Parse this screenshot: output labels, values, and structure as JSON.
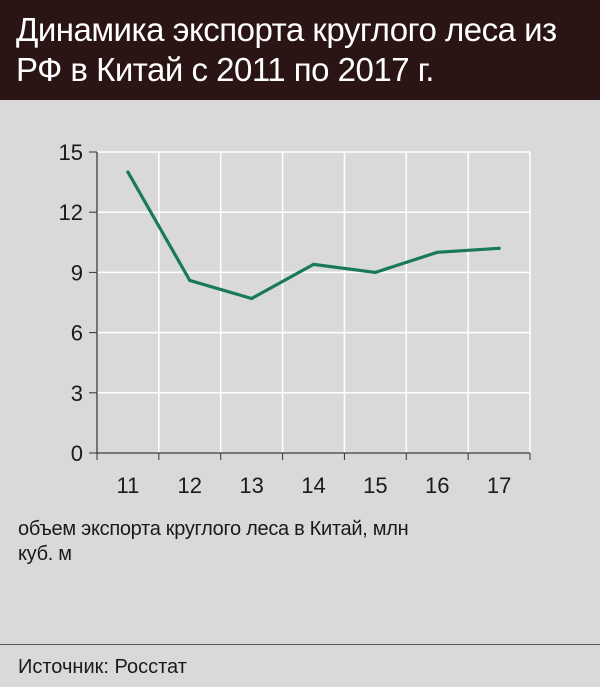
{
  "title": "Динамика экспорта круглого леса из РФ в Китай с 2011 по 2017 г.",
  "caption": "объем экспорта круглого леса в Китай, млн куб. м",
  "source": "Источник: Росстат",
  "colors": {
    "header_bg": "#2a1414",
    "background": "#d9d9d9",
    "line": "#1a7a55",
    "grid": "#ffffff"
  },
  "chart_data": {
    "type": "line",
    "categories": [
      "11",
      "12",
      "13",
      "14",
      "15",
      "16",
      "17"
    ],
    "series": [
      {
        "values": [
          14.0,
          8.6,
          7.7,
          9.4,
          9.0,
          10.0,
          10.2
        ]
      }
    ],
    "ylim": [
      0,
      15
    ],
    "yticks": [
      0,
      3,
      6,
      9,
      12,
      15
    ],
    "grid": true,
    "xlabel": "",
    "ylabel": ""
  }
}
